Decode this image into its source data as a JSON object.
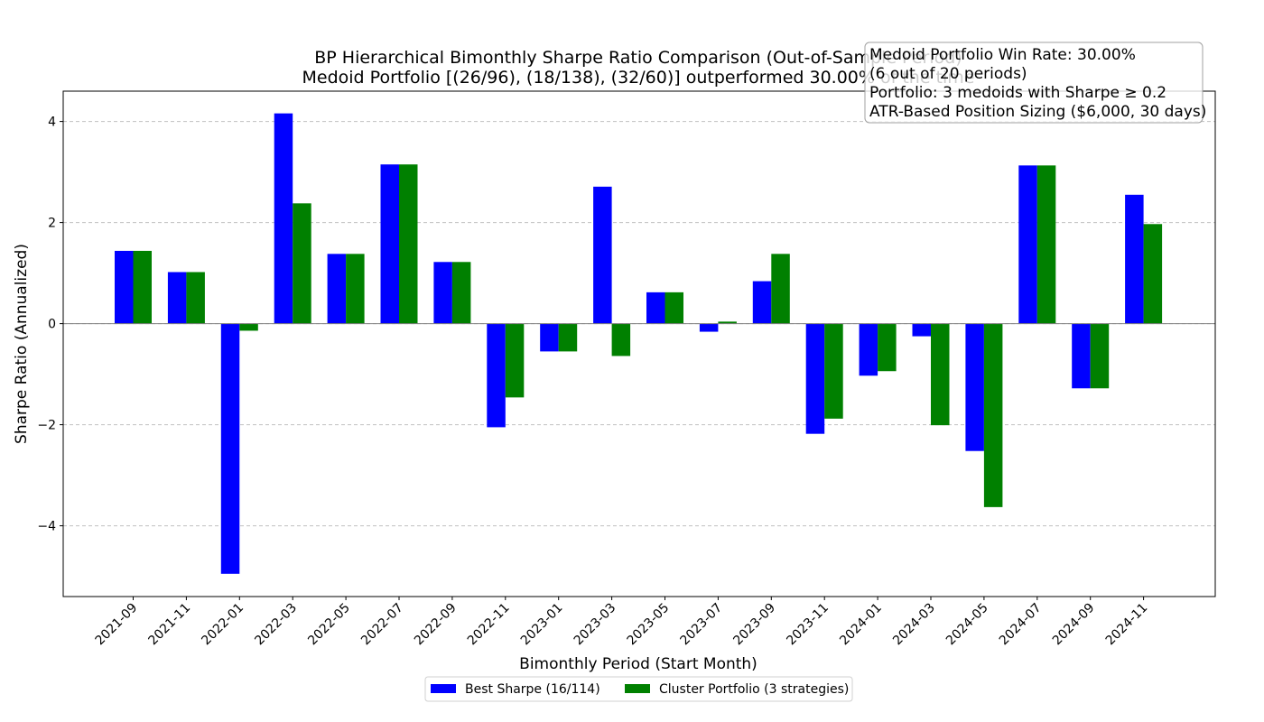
{
  "chart_data": {
    "type": "bar",
    "title_line1": "BP Hierarchical Bimonthly Sharpe Ratio Comparison (Out-of-Sample Period)",
    "title_line2": "Medoid Portfolio [(26/96), (18/138), (32/60)] outperformed 30.00% of the time",
    "xlabel": "Bimonthly Period (Start Month)",
    "ylabel": "Sharpe Ratio (Annualized)",
    "ylim": [
      -5.4,
      4.6
    ],
    "yticks": [
      -4,
      -2,
      0,
      2,
      4
    ],
    "grid": "y-dashed",
    "legend_position": "bottom-center",
    "categories": [
      "2021-09",
      "2021-11",
      "2022-01",
      "2022-03",
      "2022-05",
      "2022-07",
      "2022-09",
      "2022-11",
      "2023-01",
      "2023-03",
      "2023-05",
      "2023-07",
      "2023-09",
      "2023-11",
      "2024-01",
      "2024-03",
      "2024-05",
      "2024-07",
      "2024-09",
      "2024-11"
    ],
    "series": [
      {
        "name": "Best Sharpe (16/114)",
        "color": "#0000ff",
        "values": [
          1.44,
          1.02,
          -4.95,
          4.16,
          1.38,
          3.15,
          1.22,
          -2.05,
          -0.55,
          2.71,
          0.62,
          -0.16,
          0.84,
          -2.18,
          -1.03,
          -0.25,
          -2.52,
          3.13,
          -1.28,
          2.55
        ]
      },
      {
        "name": "Cluster Portfolio (3 strategies)",
        "color": "#008000",
        "values": [
          1.44,
          1.02,
          -0.14,
          2.38,
          1.38,
          3.15,
          1.22,
          -1.46,
          -0.55,
          -0.64,
          0.62,
          0.04,
          1.38,
          -1.88,
          -0.94,
          -2.01,
          -3.63,
          3.13,
          -1.28,
          1.97
        ]
      }
    ],
    "annotation": [
      "Medoid Portfolio Win Rate: 30.00%",
      "(6 out of 20 periods)",
      "Portfolio: 3 medoids with Sharpe ≥ 0.2",
      "ATR-Based Position Sizing ($6,000, 30 days)"
    ]
  }
}
